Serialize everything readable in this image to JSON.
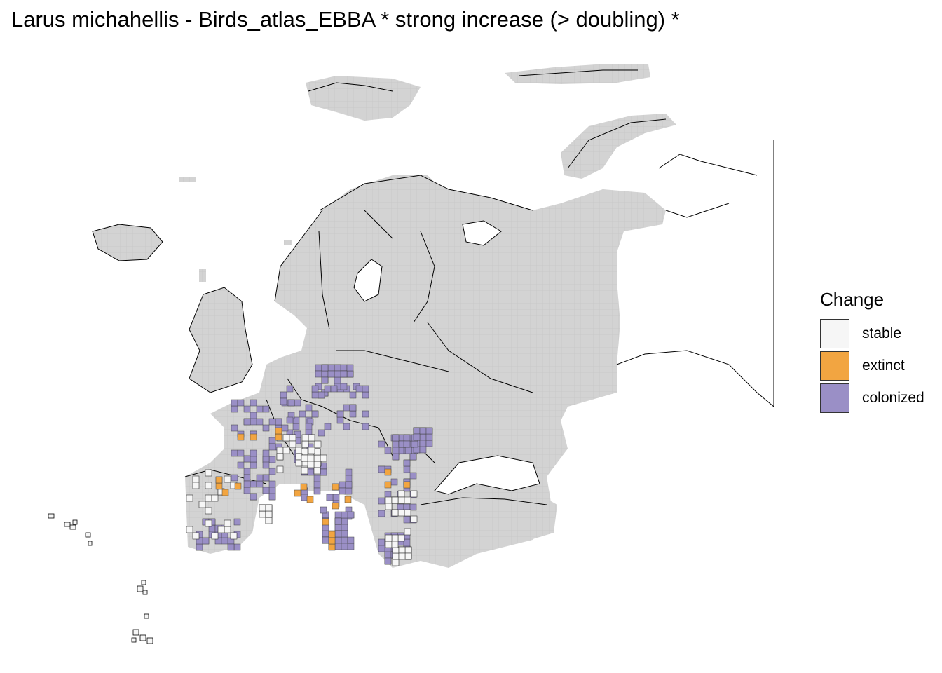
{
  "title": "Larus michahellis - Birds_atlas_EBBA * strong increase (> doubling) *",
  "legend": {
    "title": "Change",
    "items": [
      {
        "label": "stable",
        "color": "#f6f6f6"
      },
      {
        "label": "extinct",
        "color": "#f2a541"
      },
      {
        "label": "colonized",
        "color": "#9a8fc6"
      }
    ]
  },
  "colors": {
    "background_cells": "#d3d3d3",
    "borders": "#000000"
  }
}
